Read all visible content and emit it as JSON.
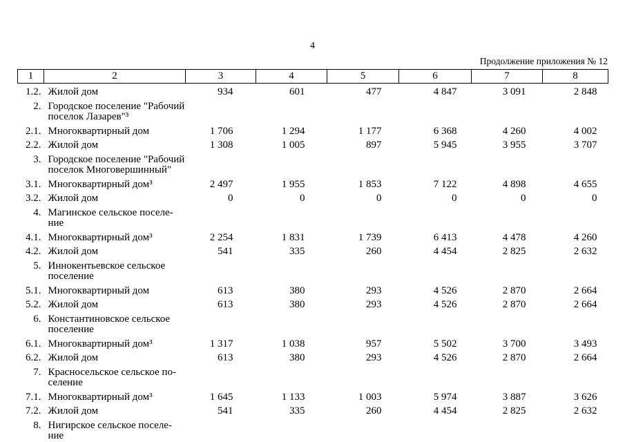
{
  "page": {
    "number": "4",
    "continuation": "Продолжение приложения № 12"
  },
  "table": {
    "header": [
      "1",
      "2",
      "3",
      "4",
      "5",
      "6",
      "7",
      "8"
    ],
    "rows": [
      {
        "num": "1.2.",
        "name": "Жилой дом",
        "values": [
          "934",
          "601",
          "477",
          "4 847",
          "3 091",
          "2 848"
        ]
      },
      {
        "num": "2.",
        "name": "Городское поселение \"Рабочий\nпоселок Лазарев\"³",
        "values": [
          "",
          "",
          "",
          "",
          "",
          ""
        ]
      },
      {
        "num": "2.1.",
        "name": "Многоквартирный дом",
        "values": [
          "1 706",
          "1 294",
          "1 177",
          "6 368",
          "4 260",
          "4 002"
        ]
      },
      {
        "num": "2.2.",
        "name": "Жилой дом",
        "values": [
          "1 308",
          "1 005",
          "897",
          "5 945",
          "3 955",
          "3 707"
        ]
      },
      {
        "num": "3.",
        "name": "Городское поселение \"Рабочий\nпоселок Многовершинный\"",
        "values": [
          "",
          "",
          "",
          "",
          "",
          ""
        ]
      },
      {
        "num": "3.1.",
        "name": "Многоквартирный дом³",
        "values": [
          "2 497",
          "1 955",
          "1 853",
          "7 122",
          "4 898",
          "4 655"
        ]
      },
      {
        "num": "3.2.",
        "name": "Жилой дом",
        "values": [
          "0",
          "0",
          "0",
          "0",
          "0",
          "0"
        ]
      },
      {
        "num": "4.",
        "name": "Магинское сельское поселе-\nние",
        "values": [
          "",
          "",
          "",
          "",
          "",
          ""
        ]
      },
      {
        "num": "4.1.",
        "name": "Многоквартирный дом³",
        "values": [
          "2 254",
          "1 831",
          "1 739",
          "6 413",
          "4 478",
          "4 260"
        ]
      },
      {
        "num": "4.2.",
        "name": "Жилой дом",
        "values": [
          "541",
          "335",
          "260",
          "4 454",
          "2 825",
          "2 632"
        ]
      },
      {
        "num": "5.",
        "name": "Иннокентьевское сельское\nпоселение",
        "values": [
          "",
          "",
          "",
          "",
          "",
          ""
        ]
      },
      {
        "num": "5.1.",
        "name": "Многоквартирный дом",
        "values": [
          "613",
          "380",
          "293",
          "4 526",
          "2 870",
          "2 664"
        ]
      },
      {
        "num": "5.2.",
        "name": "Жилой дом",
        "values": [
          "613",
          "380",
          "293",
          "4 526",
          "2 870",
          "2 664"
        ]
      },
      {
        "num": "6.",
        "name": "Константиновское сельское\nпоселение",
        "values": [
          "",
          "",
          "",
          "",
          "",
          ""
        ]
      },
      {
        "num": "6.1.",
        "name": "Многоквартирный дом³",
        "values": [
          "1 317",
          "1 038",
          "957",
          "5 502",
          "3 700",
          "3 493"
        ]
      },
      {
        "num": "6.2.",
        "name": "Жилой дом",
        "values": [
          "613",
          "380",
          "293",
          "4 526",
          "2 870",
          "2 664"
        ]
      },
      {
        "num": "7.",
        "name": "Красносельское сельское по-\nселение",
        "values": [
          "",
          "",
          "",
          "",
          "",
          ""
        ]
      },
      {
        "num": "7.1.",
        "name": "Многоквартирный дом³",
        "values": [
          "1 645",
          "1 133",
          "1 003",
          "5 974",
          "3 887",
          "3 626"
        ]
      },
      {
        "num": "7.2.",
        "name": "Жилой дом",
        "values": [
          "541",
          "335",
          "260",
          "4 454",
          "2 825",
          "2 632"
        ]
      },
      {
        "num": "8.",
        "name": "Нигирское сельское поселе-\nние",
        "values": [
          "",
          "",
          "",
          "",
          "",
          ""
        ]
      }
    ]
  }
}
